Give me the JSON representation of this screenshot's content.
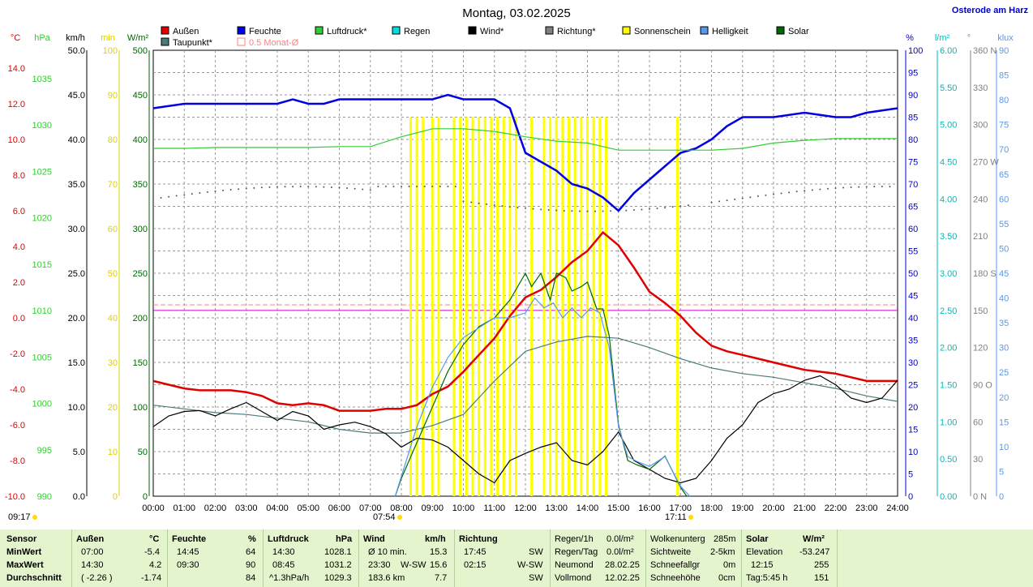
{
  "chart_data": {
    "type": "line",
    "title": "Montag, 03.02.2025",
    "location": "Osterode am Harz",
    "legend": [
      {
        "name": "Außen",
        "color": "#e00000"
      },
      {
        "name": "Feuchte",
        "color": "#0000e0"
      },
      {
        "name": "Luftdruck*",
        "color": "#33cc33"
      },
      {
        "name": "Regen",
        "color": "#00dddd"
      },
      {
        "name": "Wind*",
        "color": "#000000"
      },
      {
        "name": "Richtung*",
        "color": "#808080"
      },
      {
        "name": "Sonnenschein",
        "color": "#ffff00"
      },
      {
        "name": "Helligkeit",
        "color": "#5599ee"
      },
      {
        "name": "Solar",
        "color": "#006600"
      },
      {
        "name": "Taupunkt*",
        "color": "#4a7a7a"
      },
      {
        "name": "0.5 Monat-Ø",
        "color": "#ff8080"
      }
    ],
    "x_ticks": [
      "00:00",
      "01:00",
      "02:00",
      "03:00",
      "04:00",
      "05:00",
      "06:00",
      "07:00",
      "08:00",
      "09:00",
      "10:00",
      "11:00",
      "12:00",
      "13:00",
      "14:00",
      "15:00",
      "16:00",
      "17:00",
      "18:00",
      "19:00",
      "20:00",
      "21:00",
      "22:00",
      "23:00",
      "24:00"
    ],
    "sunrise": "07:54",
    "sunset": "17:11",
    "sunrise_top": "09:17",
    "left_axes": [
      {
        "unit": "°C",
        "color": "#e00000",
        "ticks": [
          "14.0",
          "12.0",
          "10.0",
          "8.0",
          "6.0",
          "4.0",
          "2.0",
          "0.0",
          "-2.0",
          "-4.0",
          "-6.0",
          "-8.0",
          "-10.0"
        ]
      },
      {
        "unit": "hPa",
        "color": "#33cc33",
        "ticks": [
          "1035",
          "1030",
          "1025",
          "1020",
          "1015",
          "1010",
          "1005",
          "1000",
          "995",
          "990"
        ]
      },
      {
        "unit": "km/h",
        "color": "#000000",
        "ticks": [
          "50.0",
          "45.0",
          "40.0",
          "35.0",
          "30.0",
          "25.0",
          "20.0",
          "15.0",
          "10.0",
          "5.0",
          "0.0"
        ]
      },
      {
        "unit": "min",
        "color": "#e0d000",
        "ticks": [
          "100",
          "90",
          "80",
          "70",
          "60",
          "50",
          "40",
          "30",
          "20",
          "10",
          "0"
        ]
      },
      {
        "unit": "W/m²",
        "color": "#006600",
        "ticks": [
          "500",
          "450",
          "400",
          "350",
          "300",
          "250",
          "200",
          "150",
          "100",
          "50",
          "0"
        ]
      }
    ],
    "right_axes": [
      {
        "unit": "%",
        "color": "#0000cc",
        "ticks": [
          "100",
          "95",
          "90",
          "85",
          "80",
          "75",
          "70",
          "65",
          "60",
          "55",
          "50",
          "45",
          "40",
          "35",
          "30",
          "25",
          "20",
          "15",
          "10",
          "5",
          "0"
        ]
      },
      {
        "unit": "l/m²",
        "color": "#00bbbb",
        "ticks": [
          "6.00",
          "5.50",
          "5.00",
          "4.50",
          "4.00",
          "3.50",
          "3.00",
          "2.50",
          "2.00",
          "1.50",
          "1.00",
          "0.50",
          "0.00"
        ]
      },
      {
        "unit": "°",
        "color": "#808080",
        "ticks": [
          "360 N",
          "330",
          "300",
          "270 W",
          "240",
          "210",
          "180 S",
          "150",
          "120",
          "90 O",
          "60",
          "30",
          "0 N"
        ]
      },
      {
        "unit": "klux",
        "color": "#5599ee",
        "ticks": [
          "90",
          "85",
          "80",
          "75",
          "70",
          "65",
          "60",
          "55",
          "50",
          "45",
          "40",
          "35",
          "30",
          "25",
          "20",
          "15",
          "10",
          "5",
          "0"
        ]
      }
    ],
    "grid": true,
    "series": [
      {
        "name": "Außen",
        "axis": "°C",
        "x": [
          0,
          0.5,
          1,
          1.5,
          2,
          2.5,
          3,
          3.5,
          4,
          4.5,
          5,
          5.5,
          6,
          6.5,
          7,
          7.5,
          8,
          8.5,
          9,
          9.5,
          10,
          10.5,
          11,
          11.5,
          12,
          12.5,
          13,
          13.5,
          14,
          14.5,
          15,
          15.5,
          16,
          16.5,
          17,
          17.5,
          18,
          18.5,
          19,
          19.5,
          20,
          20.5,
          21,
          21.5,
          22,
          22.5,
          23,
          23.5,
          24
        ],
        "values": [
          -3.8,
          -4.0,
          -4.2,
          -4.3,
          -4.3,
          -4.3,
          -4.4,
          -4.6,
          -5.0,
          -5.1,
          -5.0,
          -5.1,
          -5.4,
          -5.4,
          -5.4,
          -5.3,
          -5.3,
          -5.1,
          -4.5,
          -4.1,
          -3.3,
          -2.4,
          -1.5,
          -0.3,
          0.7,
          1.1,
          1.8,
          2.6,
          3.2,
          4.2,
          3.5,
          2.3,
          1.0,
          0.4,
          -0.3,
          -1.2,
          -1.9,
          -2.2,
          -2.4,
          -2.6,
          -2.8,
          -3.0,
          -3.2,
          -3.3,
          -3.4,
          -3.6,
          -3.8,
          -3.8,
          -3.8
        ]
      },
      {
        "name": "Feuchte",
        "axis": "%",
        "x": [
          0,
          1,
          2,
          3,
          4,
          4.5,
          5,
          5.5,
          6,
          7,
          8,
          9,
          9.5,
          10,
          10.5,
          11,
          11.5,
          12,
          12.5,
          13,
          13.5,
          14,
          14.5,
          15,
          15.5,
          16,
          16.5,
          17,
          17.5,
          18,
          18.5,
          19,
          20,
          21,
          22,
          22.5,
          23,
          24
        ],
        "values": [
          87,
          88,
          88,
          88,
          88,
          89,
          88,
          88,
          89,
          89,
          89,
          89,
          90,
          89,
          89,
          89,
          87,
          77,
          75,
          73,
          70,
          69,
          67,
          64,
          68,
          71,
          74,
          77,
          78,
          80,
          83,
          85,
          85,
          86,
          85,
          85,
          86,
          87
        ]
      },
      {
        "name": "Luftdruck*",
        "axis": "hPa",
        "x": [
          0,
          1,
          2,
          3,
          4,
          5,
          6,
          7,
          8,
          9,
          10,
          11,
          12,
          13,
          14,
          15,
          16,
          17,
          18,
          19,
          20,
          21,
          22,
          23,
          24
        ],
        "values": [
          1029.0,
          1029.0,
          1029.1,
          1029.1,
          1029.1,
          1029.1,
          1029.2,
          1029.2,
          1030.3,
          1031.2,
          1031.2,
          1030.9,
          1030.3,
          1029.8,
          1029.6,
          1028.8,
          1028.8,
          1028.8,
          1028.8,
          1029.0,
          1029.6,
          1029.9,
          1030.1,
          1030.1,
          1030.1
        ]
      },
      {
        "name": "Taupunkt*",
        "axis": "°C",
        "x": [
          0,
          1,
          2,
          3,
          4,
          5,
          6,
          7,
          8,
          9,
          10,
          11,
          12,
          13,
          14,
          15,
          16,
          17,
          18,
          19,
          20,
          21,
          22,
          23,
          24
        ],
        "values": [
          -5.1,
          -5.3,
          -5.5,
          -5.6,
          -5.8,
          -6.0,
          -6.4,
          -6.6,
          -6.6,
          -6.2,
          -5.6,
          -3.8,
          -2.2,
          -1.7,
          -1.4,
          -1.5,
          -2.0,
          -2.6,
          -3.1,
          -3.4,
          -3.6,
          -3.9,
          -4.2,
          -4.6,
          -4.9
        ]
      },
      {
        "name": "Wind*",
        "axis": "km/h",
        "x": [
          0,
          0.5,
          1,
          1.5,
          2,
          2.5,
          3,
          3.5,
          4,
          4.5,
          5,
          5.5,
          6,
          6.5,
          7,
          7.5,
          8,
          8.5,
          9,
          9.5,
          10,
          10.5,
          11,
          11.5,
          12,
          12.5,
          13,
          13.5,
          14,
          14.5,
          15,
          15.5,
          16,
          16.5,
          17,
          17.5,
          18,
          18.5,
          19,
          19.5,
          20,
          20.5,
          21,
          21.5,
          22,
          22.5,
          23,
          23.5,
          24
        ],
        "values": [
          7.8,
          9.0,
          9.5,
          9.6,
          9.0,
          9.8,
          10.5,
          9.5,
          8.5,
          9.5,
          9.0,
          7.5,
          8.0,
          8.3,
          7.8,
          7.0,
          5.5,
          6.5,
          6.3,
          5.5,
          4.0,
          2.5,
          1.5,
          4.0,
          4.8,
          5.5,
          6.0,
          4.0,
          3.5,
          5.0,
          7.2,
          4.0,
          3.0,
          2.0,
          1.5,
          2.0,
          4.0,
          6.5,
          8.0,
          10.5,
          11.5,
          12.0,
          13.0,
          13.5,
          12.5,
          11.0,
          10.5,
          11.0,
          13.0
        ]
      },
      {
        "name": "Solar",
        "axis": "W/m²",
        "x": [
          7.8,
          8,
          8.5,
          9,
          9.5,
          10,
          10.5,
          11,
          11.5,
          12,
          12.2,
          12.5,
          12.8,
          13,
          13.3,
          13.5,
          13.8,
          14,
          14.3,
          14.5,
          14.7,
          15,
          15.3,
          15.6,
          16,
          16.5,
          17,
          17.2
        ],
        "values": [
          0,
          20,
          60,
          100,
          140,
          170,
          190,
          200,
          220,
          250,
          235,
          250,
          220,
          250,
          245,
          230,
          235,
          240,
          210,
          210,
          180,
          80,
          40,
          35,
          30,
          45,
          10,
          0
        ]
      },
      {
        "name": "Helligkeit",
        "axis": "klux",
        "x": [
          7.8,
          8,
          8.5,
          9,
          9.5,
          10,
          10.5,
          11,
          11.5,
          12,
          12.3,
          12.6,
          12.9,
          13.2,
          13.5,
          13.8,
          14.1,
          14.4,
          14.7,
          15,
          15.3,
          15.6,
          16,
          16.5,
          17,
          17.3
        ],
        "values": [
          0,
          4,
          14,
          22,
          28,
          32,
          34,
          36,
          36,
          37,
          40,
          38,
          39,
          36,
          38,
          36,
          38,
          37,
          30,
          14,
          8,
          7,
          6,
          8,
          2,
          0
        ]
      }
    ],
    "sunshine_bars_hours": [
      8.3,
      8.5,
      8.7,
      9.0,
      9.2,
      9.7,
      9.9,
      10.1,
      10.3,
      10.5,
      10.7,
      10.9,
      11.1,
      11.3,
      11.5,
      11.7,
      12.2,
      12.6,
      12.8,
      13.0,
      13.2,
      13.4,
      13.6,
      13.8,
      14.0,
      14.2,
      14.4,
      14.6,
      16.9
    ],
    "month_avg_temp": 0.3,
    "zero_line_temp": 0.0
  },
  "table": {
    "headers": {
      "sensor": "Sensor",
      "aussen": "Außen",
      "aussen_unit": "°C",
      "feuchte": "Feuchte",
      "feuchte_unit": "%",
      "luftdruck": "Luftdruck",
      "luftdruck_unit": "hPa",
      "wind": "Wind",
      "wind_unit": "km/h",
      "richtung": "Richtung",
      "solar": "Solar",
      "solar_unit": "W/m²"
    },
    "rows": {
      "min": "MinWert",
      "max": "MaxWert",
      "avg": "Durchschnitt"
    },
    "aussen": {
      "min_time": "07:00",
      "min_val": "-5.4",
      "max_time": "14:30",
      "max_val": "4.2",
      "avg_extra": "( -2.26 )",
      "avg_val": "-1.74"
    },
    "feuchte": {
      "min_time": "14:45",
      "min_val": "64",
      "max_time": "09:30",
      "max_val": "90",
      "avg_val": "84"
    },
    "luftdruck": {
      "min_time": "14:30",
      "min_val": "1028.1",
      "max_time": "08:45",
      "max_val": "1031.2",
      "avg_extra": "^1.3hPa/h",
      "avg_val": "1029.3"
    },
    "wind": {
      "r1_label": "Ø 10 min.",
      "r1_val": "15.3",
      "r2_time": "23:30",
      "r2_dir": "W-SW",
      "r2_val": "15.6",
      "r3_label": "183.6 km",
      "r3_val": "7.7"
    },
    "richtung": {
      "r1_time": "17:45",
      "r1_val": "SW",
      "r2_time": "02:15",
      "r2_val": "W-SW",
      "r3_val": "SW"
    },
    "regen": {
      "r0_label": "Regen/1h",
      "r0_val": "0.0l/m²",
      "r1_label": "Regen/Tag",
      "r1_val": "0.0l/m²",
      "r2_label": "Neumond",
      "r2_val": "28.02.25",
      "r3_label": "Vollmond",
      "r3_val": "12.02.25"
    },
    "wolken": {
      "r0_label": "Wolkenunterg",
      "r0_val": "285m",
      "r1_label": "Sichtweite",
      "r1_val": "2-5km",
      "r2_label": "Schneefallgr",
      "r2_val": "0m",
      "r3_label": "Schneehöhe",
      "r3_val": "0cm"
    },
    "solar": {
      "r1_label": "Elevation",
      "r1_val": "-53.247",
      "r2_time": "12:15",
      "r2_val": "255",
      "r3_label": "Tag:5:45 h",
      "r3_val": "151"
    }
  }
}
